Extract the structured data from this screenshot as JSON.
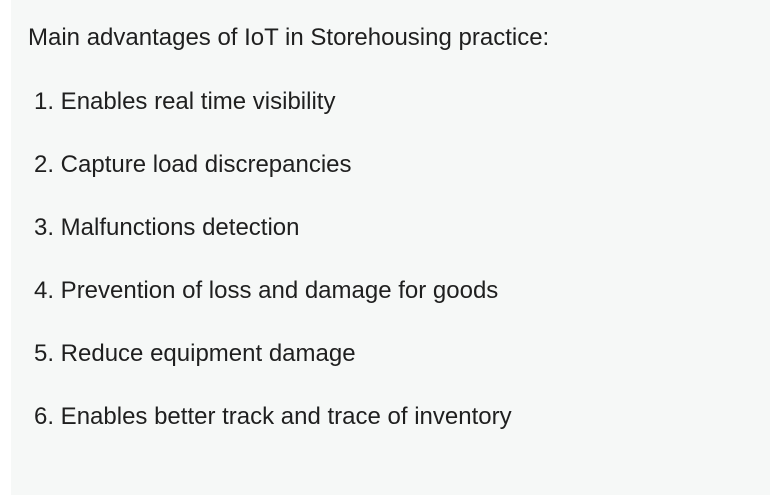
{
  "content": {
    "heading": "Main advantages of IoT in Storehousing practice:",
    "items": [
      "1. Enables real time visibility",
      "2. Capture load discrepancies",
      "3. Malfunctions detection",
      "4. Prevention of loss and damage for goods",
      "5. Reduce equipment damage",
      "6. Enables better track and trace of inventory"
    ]
  },
  "colors": {
    "background": "#f6f8f7",
    "text": "#1f1f1f"
  }
}
